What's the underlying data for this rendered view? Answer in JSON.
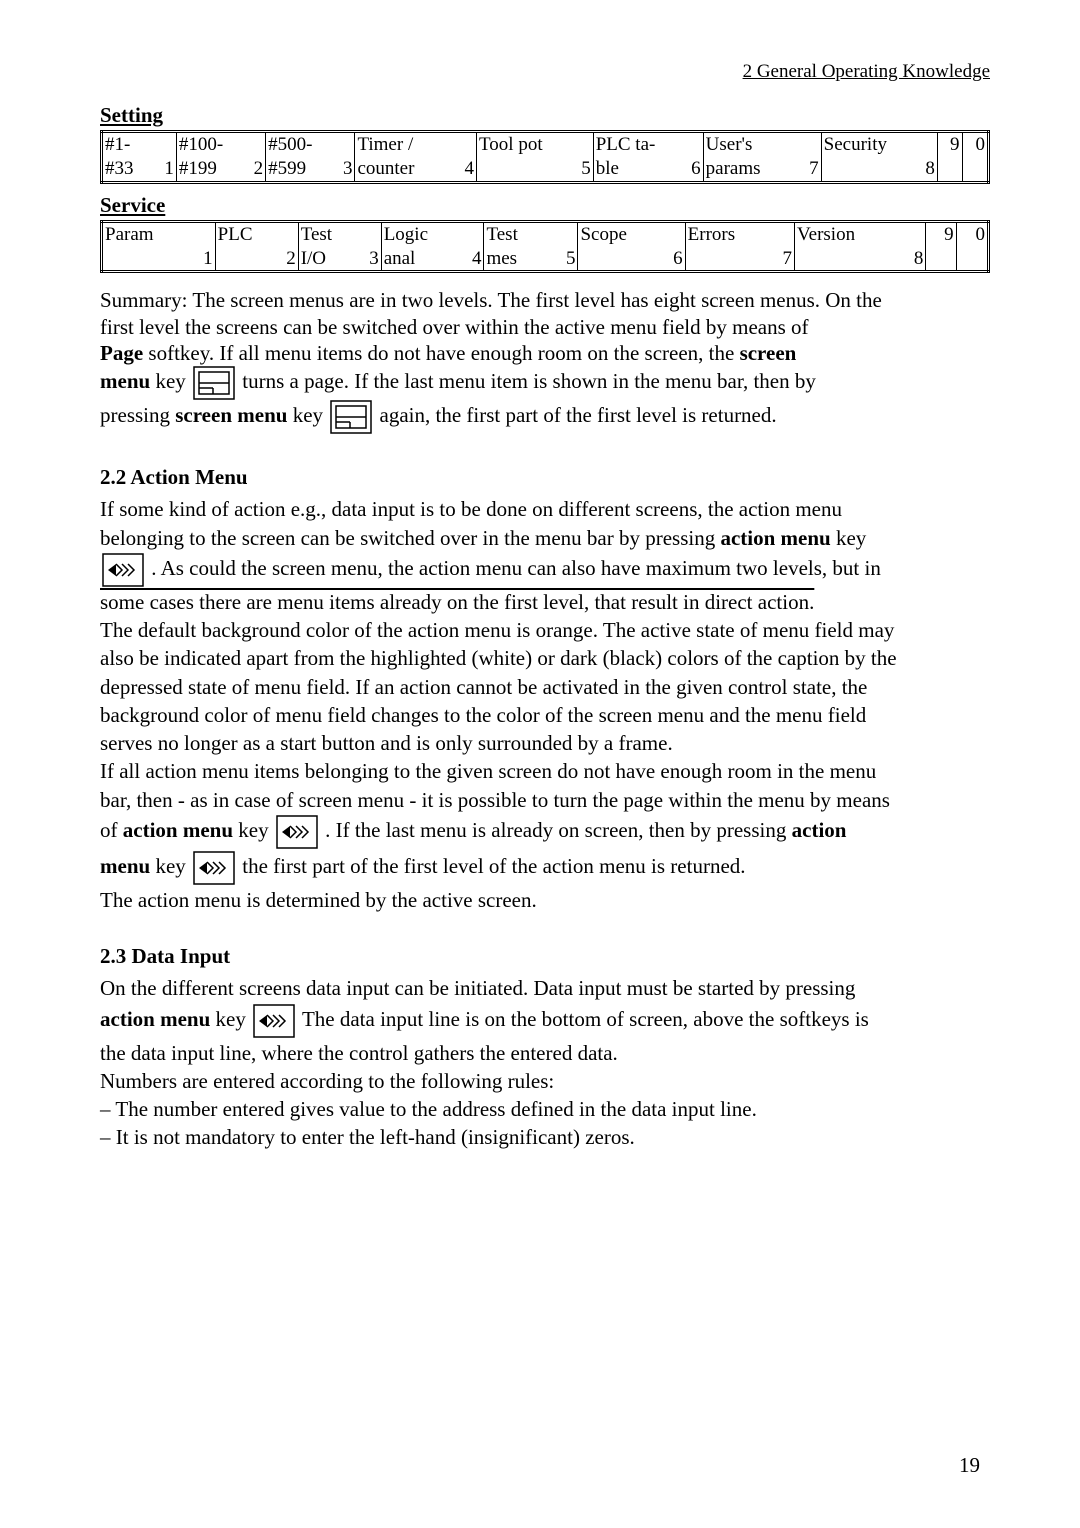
{
  "header": "2 General Operating Knowledge",
  "setting": {
    "title": "Setting",
    "cols": [
      {
        "top": "#1-",
        "bot": "#33",
        "n": "1"
      },
      {
        "top": "#100-",
        "bot": "#199",
        "n": "2"
      },
      {
        "top": "#500-",
        "bot": "#599",
        "n": "3"
      },
      {
        "top": "Timer /",
        "bot": "counter",
        "n": "4"
      },
      {
        "top": "Tool pot",
        "bot": "",
        "n": "5"
      },
      {
        "top": "PLC ta-",
        "bot": "ble",
        "n": "6"
      },
      {
        "top": "User's",
        "bot": "params",
        "n": "7"
      },
      {
        "top": "Security",
        "bot": "",
        "n": "8"
      },
      {
        "top": "",
        "bot": "",
        "n": "9"
      },
      {
        "top": "",
        "bot": "",
        "n": "0"
      }
    ]
  },
  "service": {
    "title": "Service",
    "cols": [
      {
        "top": "Param",
        "bot": "",
        "n": "1"
      },
      {
        "top": "PLC",
        "bot": "",
        "n": "2"
      },
      {
        "top": "Test",
        "bot": "I/O",
        "n": "3"
      },
      {
        "top": "Logic",
        "bot": "anal",
        "n": "4"
      },
      {
        "top": "Test",
        "bot": "mes",
        "n": "5"
      },
      {
        "top": "Scope",
        "bot": "",
        "n": "6"
      },
      {
        "top": "Errors",
        "bot": "",
        "n": "7"
      },
      {
        "top": "Version",
        "bot": "",
        "n": "8"
      },
      {
        "top": "",
        "bot": "",
        "n": "9"
      },
      {
        "top": "",
        "bot": "",
        "n": "0"
      }
    ]
  },
  "summary": {
    "l1": "Summary: The screen menus are in two levels. The first level has eight screen menus. On the",
    "l2": "first level the screens can be switched over within the active menu field by means of",
    "l3a": "Page",
    "l3b": " softkey. If all menu items do not have enough room on the screen, the ",
    "l3c": "screen",
    "l4a": "menu",
    "l4b": " key ",
    "l4c": " turns a page. If the last menu item is shown in the menu bar, then by",
    "l5a": "pressing ",
    "l5b": "screen menu",
    "l5c": " key ",
    "l5d": " again, the first part of the first level is returned."
  },
  "s22": {
    "h": "2.2 Action Menu",
    "p1": "If some kind of action e.g., data input is to be done on different screens, the action menu",
    "p2a": "belonging to the screen can be switched over in the menu bar by pressing ",
    "p2b": "action menu",
    "p2c": " key",
    "p3": ". As could the screen menu, the action menu can also have maximum two levels, but in",
    "p4": "some cases there are menu items already on the first level, that result in direct action.",
    "p5": "The default background color of the action menu is orange. The active state of menu field may",
    "p6": "also be indicated apart from the highlighted (white) or dark (black) colors of the caption by the",
    "p7": "depressed state of menu field. If an action cannot be activated in the given control state, the",
    "p8": "background color of menu field changes to the color of the screen menu and the menu field",
    "p9": "serves no longer as a start button and is only surrounded by a frame.",
    "p10": "If all action menu items belonging to the given screen do not have enough room in the menu",
    "p11": "bar, then - as in case of screen menu - it is possible to turn the page within the menu by means",
    "p12a": "of ",
    "p12b": "action menu",
    "p12c": " key ",
    "p12d": ". If the last menu is already on screen, then by pressing ",
    "p12e": "action",
    "p13a": "menu",
    "p13b": " key ",
    "p13c": " the first part of the first level of the action menu is returned.",
    "p14": "The action menu is determined by the active screen."
  },
  "s23": {
    "h": "2.3 Data Input",
    "p1": "On the different screens data input can be initiated. Data input must be started by pressing",
    "p2a": "action menu",
    "p2b": " key ",
    "p2c": " The data input line is on the bottom of screen, above the softkeys is",
    "p3": "the data input line, where the control gathers the entered data.",
    "p4": "Numbers are entered according to the following rules:",
    "p5": "– The number entered gives value to the address defined in the data input line.",
    "p6": "– It is not mandatory to enter the left-hand (insignificant) zeros."
  },
  "page": "19"
}
